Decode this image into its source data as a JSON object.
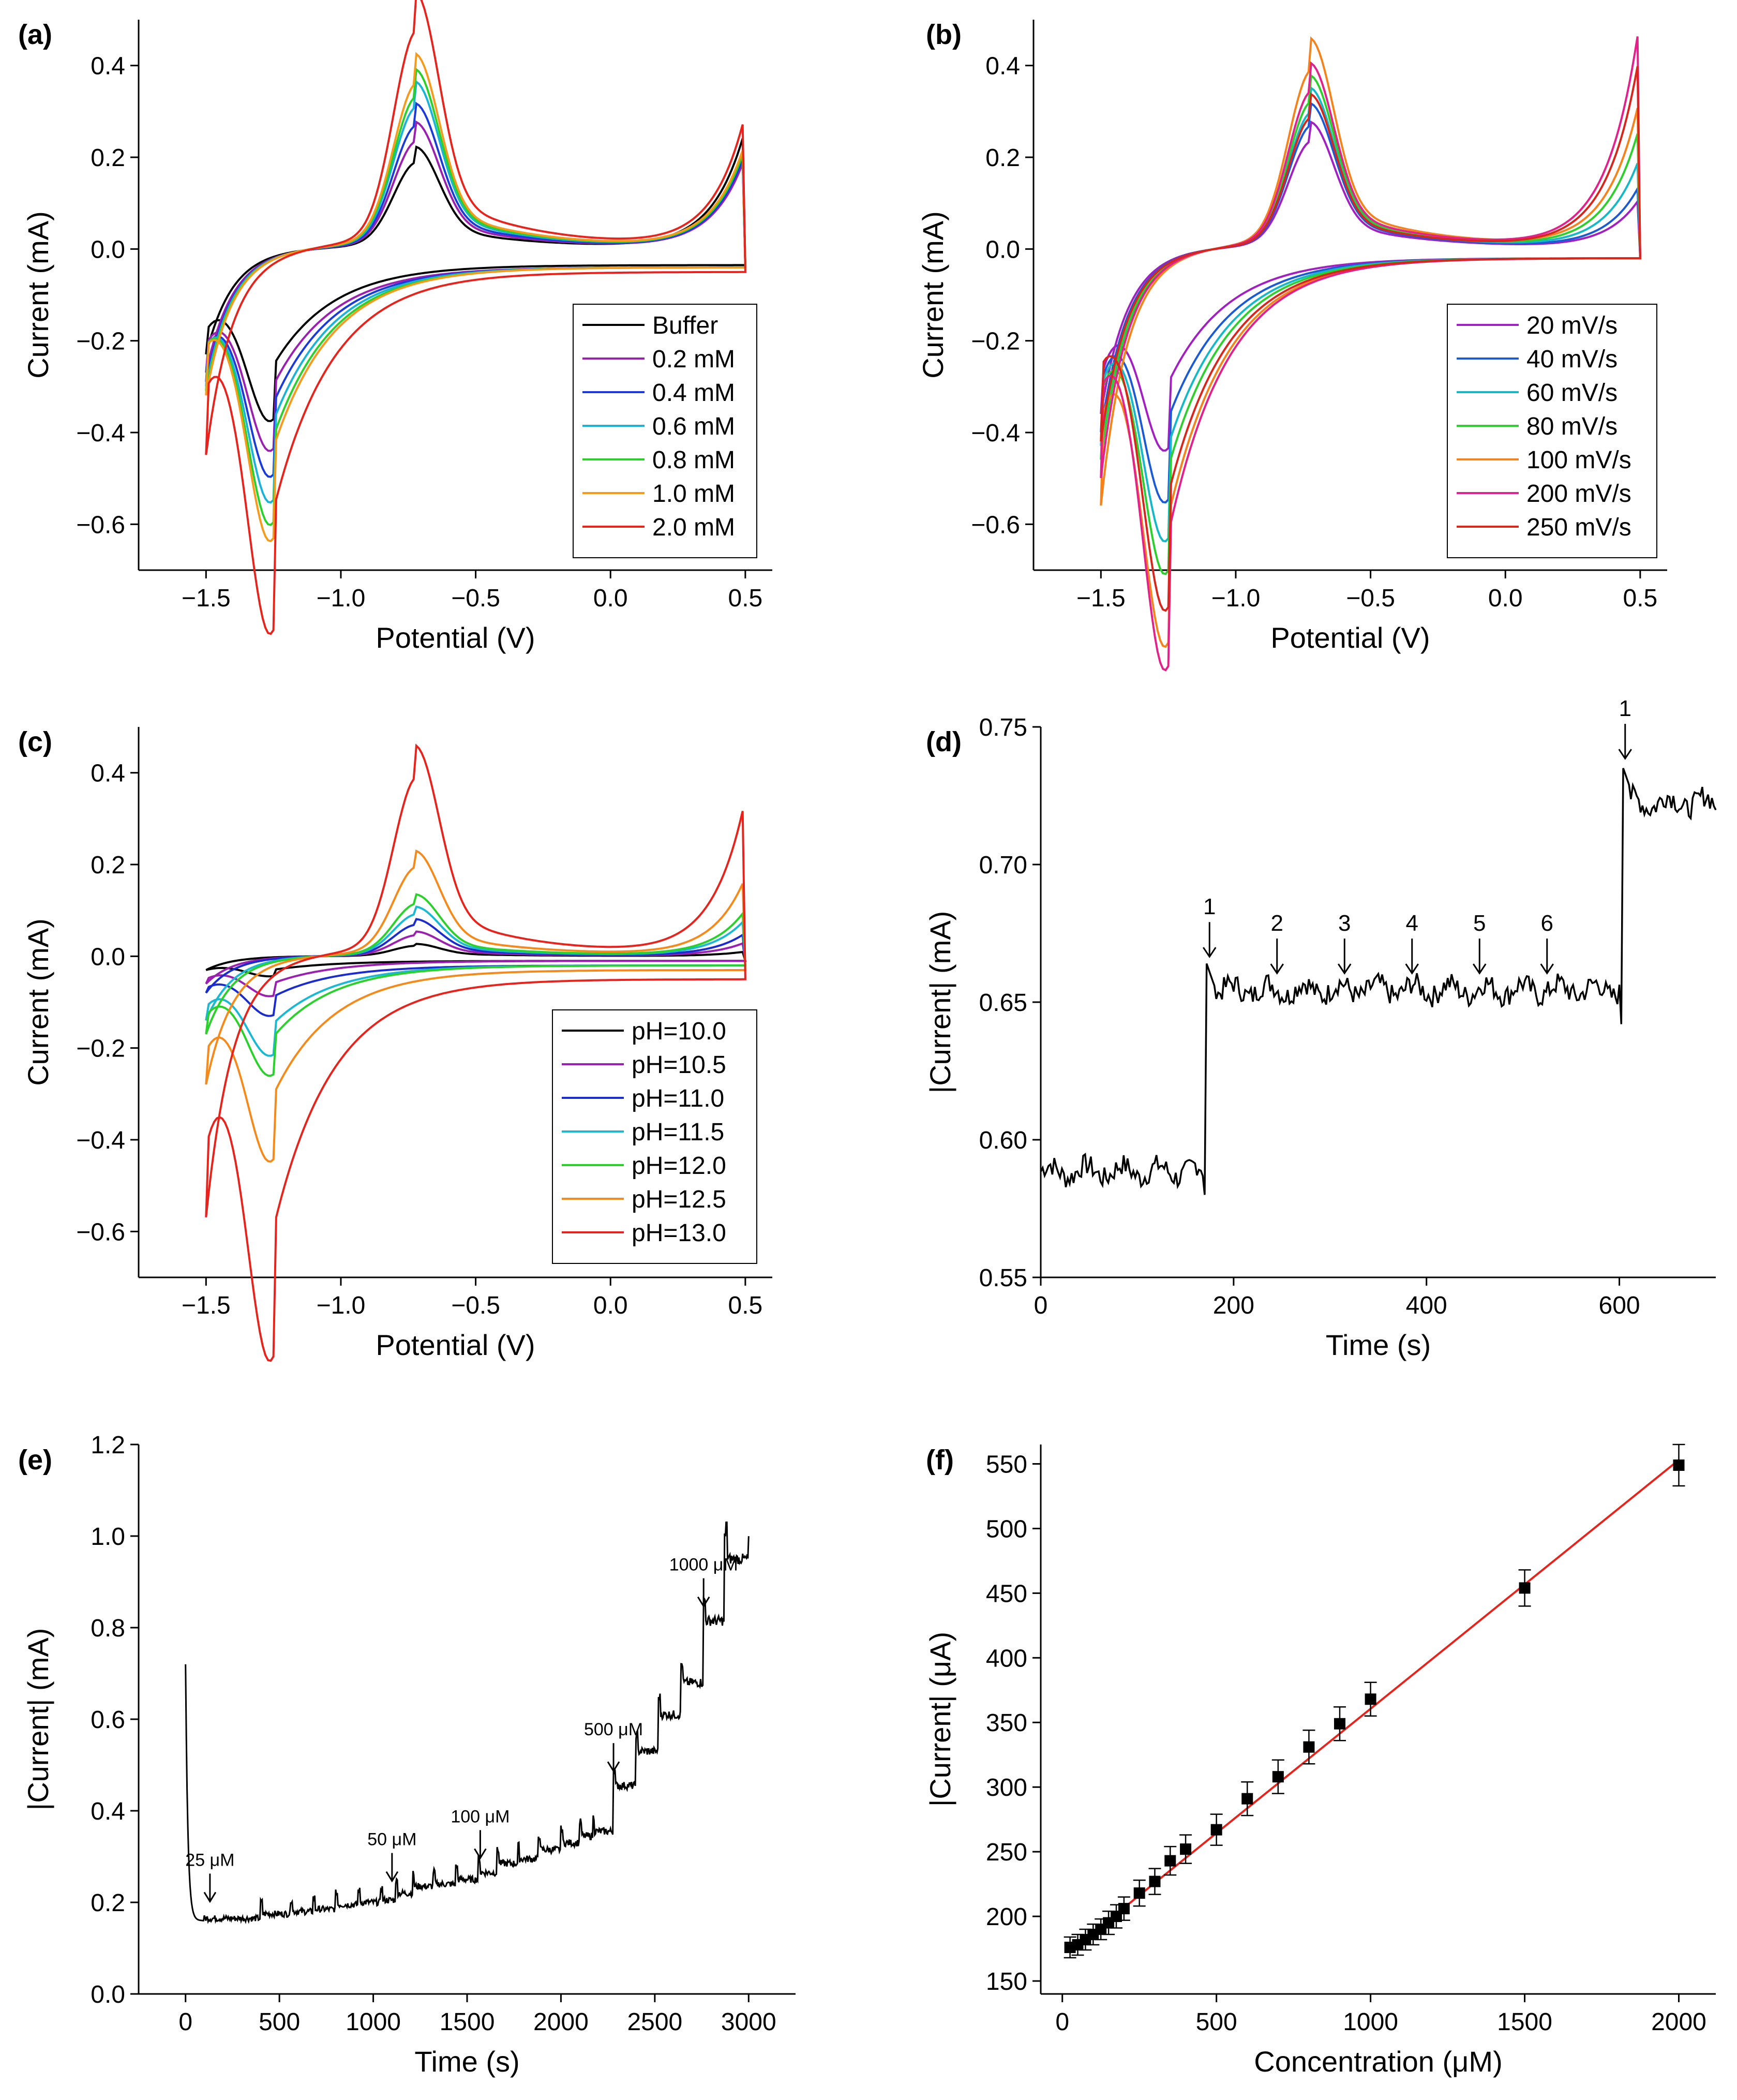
{
  "chart_data": [
    {
      "panel": "(a)",
      "type": "line",
      "xlabel": "Potential (V)",
      "ylabel": "Current (mA)",
      "xlim": [
        -1.75,
        0.6
      ],
      "ylim": [
        -0.7,
        0.5
      ],
      "xticks": [
        -1.5,
        -1.0,
        -0.5,
        0.0,
        0.5
      ],
      "xtick_labels": [
        "−1.5",
        "−1.0",
        "−0.5",
        "0.0",
        "0.5"
      ],
      "yticks": [
        -0.6,
        -0.4,
        -0.2,
        0.0,
        0.2,
        0.4
      ],
      "ytick_labels": [
        "−0.6",
        "−0.4",
        "−0.2",
        "0.0",
        "0.2",
        "0.4"
      ],
      "legend_position": "lower-right",
      "series": [
        {
          "name": "Buffer",
          "color": "#000000",
          "pa": 0.165,
          "pc": -0.26,
          "ev": 0.26,
          "es": -0.23,
          "base": -0.035
        },
        {
          "name": "0.2 mM",
          "color": "#9b1fb0",
          "pa": 0.205,
          "pc": -0.305,
          "ev": 0.2,
          "es": -0.27,
          "base": -0.04
        },
        {
          "name": "0.4 mM",
          "color": "#1a3adb",
          "pa": 0.235,
          "pc": -0.345,
          "ev": 0.21,
          "es": -0.29,
          "base": -0.04
        },
        {
          "name": "0.6 mM",
          "color": "#19b3d8",
          "pa": 0.27,
          "pc": -0.385,
          "ev": 0.22,
          "es": -0.3,
          "base": -0.04
        },
        {
          "name": "0.8 mM",
          "color": "#2ad12a",
          "pa": 0.29,
          "pc": -0.42,
          "ev": 0.22,
          "es": -0.31,
          "base": -0.04
        },
        {
          "name": "1.0 mM",
          "color": "#f59a1b",
          "pa": 0.315,
          "pc": -0.445,
          "ev": 0.23,
          "es": -0.32,
          "base": -0.04
        },
        {
          "name": "2.0 mM",
          "color": "#e8231b",
          "pa": 0.415,
          "pc": -0.585,
          "ev": 0.29,
          "es": -0.45,
          "base": -0.05
        }
      ]
    },
    {
      "panel": "(b)",
      "type": "line",
      "xlabel": "Potential (V)",
      "ylabel": "Current (mA)",
      "xlim": [
        -1.75,
        0.6
      ],
      "ylim": [
        -0.7,
        0.5
      ],
      "xticks": [
        -1.5,
        -1.0,
        -0.5,
        0.0,
        0.5
      ],
      "xtick_labels": [
        "−1.5",
        "−1.0",
        "−0.5",
        "0.0",
        "0.5"
      ],
      "yticks": [
        -0.6,
        -0.4,
        -0.2,
        0.0,
        0.2,
        0.4
      ],
      "ytick_labels": [
        "−0.6",
        "−0.4",
        "−0.2",
        "0.0",
        "0.2",
        "0.4"
      ],
      "legend_position": "lower-right",
      "series": [
        {
          "name": "20 mV/s",
          "color": "#a21fc2",
          "pa": 0.205,
          "pc": -0.3,
          "ev": 0.11,
          "es": -0.36,
          "base": -0.02
        },
        {
          "name": "40 mV/s",
          "color": "#1a5ad6",
          "pa": 0.235,
          "pc": -0.38,
          "ev": 0.14,
          "es": -0.4,
          "base": -0.02
        },
        {
          "name": "60 mV/s",
          "color": "#14b8c6",
          "pa": 0.26,
          "pc": -0.44,
          "ev": 0.2,
          "es": -0.43,
          "base": -0.02
        },
        {
          "name": "80 mV/s",
          "color": "#2ccf2c",
          "pa": 0.28,
          "pc": -0.49,
          "ev": 0.27,
          "es": -0.46,
          "base": -0.02
        },
        {
          "name": "100 mV/s",
          "color": "#f5821b",
          "pa": 0.34,
          "pc": -0.6,
          "ev": 0.33,
          "es": -0.56,
          "base": -0.02
        },
        {
          "name": "200 mV/s",
          "color": "#e2228a",
          "pa": 0.3,
          "pc": -0.64,
          "ev": 0.5,
          "es": -0.5,
          "base": -0.02
        },
        {
          "name": "250 mV/s",
          "color": "#d8261c",
          "pa": 0.25,
          "pc": -0.55,
          "ev": 0.43,
          "es": -0.42,
          "base": -0.02
        }
      ]
    },
    {
      "panel": "(c)",
      "type": "line",
      "xlabel": "Potential (V)",
      "ylabel": "Current (mA)",
      "xlim": [
        -1.75,
        0.6
      ],
      "ylim": [
        -0.7,
        0.5
      ],
      "xticks": [
        -1.5,
        -1.0,
        -0.5,
        0.0,
        0.5
      ],
      "xtick_labels": [
        "−1.5",
        "−1.0",
        "−0.5",
        "0.0",
        "0.5"
      ],
      "yticks": [
        -0.6,
        -0.4,
        -0.2,
        0.0,
        0.2,
        0.4
      ],
      "ytick_labels": [
        "−0.6",
        "−0.4",
        "−0.2",
        "0.0",
        "0.2",
        "0.4"
      ],
      "legend_position": "lower-right",
      "series": [
        {
          "name": "pH=10.0",
          "color": "#000000",
          "pa": 0.02,
          "pc": -0.03,
          "ev": 0.01,
          "es": -0.03,
          "base": -0.01
        },
        {
          "name": "pH=10.5",
          "color": "#9b1fb0",
          "pa": 0.04,
          "pc": -0.06,
          "ev": 0.03,
          "es": -0.06,
          "base": -0.01
        },
        {
          "name": "pH=11.0",
          "color": "#1a2bd0",
          "pa": 0.06,
          "pc": -0.09,
          "ev": 0.05,
          "es": -0.08,
          "base": -0.02
        },
        {
          "name": "pH=11.5",
          "color": "#19b8d3",
          "pa": 0.08,
          "pc": -0.15,
          "ev": 0.08,
          "es": -0.14,
          "base": -0.02
        },
        {
          "name": "pH=12.0",
          "color": "#2ad12a",
          "pa": 0.1,
          "pc": -0.18,
          "ev": 0.1,
          "es": -0.17,
          "base": -0.02
        },
        {
          "name": "pH=12.5",
          "color": "#f58a1b",
          "pa": 0.17,
          "pc": -0.31,
          "ev": 0.17,
          "es": -0.28,
          "base": -0.03
        },
        {
          "name": "pH=13.0",
          "color": "#e8231b",
          "pa": 0.34,
          "pc": -0.61,
          "ev": 0.34,
          "es": -0.57,
          "base": -0.05
        }
      ]
    },
    {
      "panel": "(d)",
      "type": "line",
      "xlabel": "Time (s)",
      "ylabel": "|Current| (mA)",
      "xlim": [
        0,
        700
      ],
      "ylim": [
        0.55,
        0.75
      ],
      "xticks": [
        0,
        200,
        400,
        600
      ],
      "xtick_labels": [
        "0",
        "200",
        "400",
        "600"
      ],
      "yticks": [
        0.55,
        0.6,
        0.65,
        0.7,
        0.75
      ],
      "ytick_labels": [
        "0.55",
        "0.60",
        "0.65",
        "0.70",
        "0.75"
      ],
      "trace": {
        "color": "#000000",
        "segments": [
          {
            "t_start": 0,
            "t_end": 171,
            "level": 0.5885
          },
          {
            "t_start": 171,
            "t_end": 603,
            "level": 0.6545
          },
          {
            "t_start": 603,
            "t_end": 700,
            "level": 0.7225
          }
        ]
      },
      "annotations": [
        {
          "label": "1",
          "x": 175,
          "y": 0.665
        },
        {
          "label": "2",
          "x": 245,
          "y": 0.659
        },
        {
          "label": "3",
          "x": 315,
          "y": 0.659
        },
        {
          "label": "4",
          "x": 385,
          "y": 0.659
        },
        {
          "label": "5",
          "x": 455,
          "y": 0.659
        },
        {
          "label": "6",
          "x": 525,
          "y": 0.659
        },
        {
          "label": "1",
          "x": 606,
          "y": 0.737
        }
      ]
    },
    {
      "panel": "(e)",
      "type": "line",
      "xlabel": "Time (s)",
      "ylabel": "|Current| (mA)",
      "xlim": [
        -250,
        3250
      ],
      "ylim": [
        0.0,
        1.2
      ],
      "xticks": [
        0,
        500,
        1000,
        1500,
        2000,
        2500,
        3000
      ],
      "xtick_labels": [
        "0",
        "500",
        "1000",
        "1500",
        "2000",
        "2500",
        "3000"
      ],
      "yticks": [
        0.0,
        0.2,
        0.4,
        0.6,
        0.8,
        1.0,
        1.2
      ],
      "ytick_labels": [
        "0.0",
        "0.2",
        "0.4",
        "0.6",
        "0.8",
        "1.0",
        "1.2"
      ],
      "trace": {
        "color": "#000000",
        "levels": [
          [
            0,
            0.165
          ],
          [
            400,
            0.175
          ],
          [
            560,
            0.18
          ],
          [
            680,
            0.185
          ],
          [
            800,
            0.195
          ],
          [
            920,
            0.2
          ],
          [
            1040,
            0.205
          ],
          [
            1120,
            0.22
          ],
          [
            1210,
            0.235
          ],
          [
            1320,
            0.24
          ],
          [
            1440,
            0.25
          ],
          [
            1560,
            0.265
          ],
          [
            1660,
            0.285
          ],
          [
            1770,
            0.295
          ],
          [
            1880,
            0.315
          ],
          [
            2000,
            0.33
          ],
          [
            2100,
            0.345
          ],
          [
            2170,
            0.355
          ],
          [
            2280,
            0.455
          ],
          [
            2400,
            0.53
          ],
          [
            2520,
            0.61
          ],
          [
            2640,
            0.68
          ],
          [
            2760,
            0.815
          ],
          [
            2870,
            0.95
          ],
          [
            3000,
            0.95
          ]
        ]
      },
      "annotations": [
        {
          "label": "25 μM",
          "x": 130,
          "y": 0.195
        },
        {
          "label": "50 μM",
          "x": 1100,
          "y": 0.24
        },
        {
          "label": "100 μM",
          "x": 1570,
          "y": 0.29
        },
        {
          "label": "500 μM",
          "x": 2280,
          "y": 0.48
        },
        {
          "label": "1000 μM",
          "x": 2760,
          "y": 0.84
        }
      ]
    },
    {
      "panel": "(f)",
      "type": "scatter",
      "xlabel": "Concentration (μM)",
      "ylabel": "|Current| (μA)",
      "xlim": [
        -70,
        2120
      ],
      "ylim": [
        140,
        565
      ],
      "xticks": [
        0,
        500,
        1000,
        1500,
        2000
      ],
      "xtick_labels": [
        "0",
        "500",
        "1000",
        "1500",
        "2000"
      ],
      "yticks": [
        150,
        200,
        250,
        300,
        350,
        400,
        450,
        500,
        550
      ],
      "ytick_labels": [
        "150",
        "200",
        "250",
        "300",
        "350",
        "400",
        "450",
        "500",
        "550"
      ],
      "fit_line": {
        "color": "#e8231b",
        "x": [
          25,
          2000
        ],
        "y": [
          173,
          553
        ]
      },
      "x": [
        25,
        50,
        75,
        100,
        125,
        150,
        175,
        200,
        250,
        300,
        350,
        400,
        500,
        600,
        700,
        800,
        900,
        1000,
        1500,
        2000
      ],
      "y": [
        176,
        178,
        182,
        186,
        190,
        195,
        200,
        206,
        218,
        227,
        243,
        252,
        267,
        291,
        308,
        331,
        349,
        368,
        454,
        549
      ],
      "yerr": [
        8,
        8,
        8,
        8,
        8,
        9,
        9,
        9,
        10,
        10,
        11,
        11,
        12,
        13,
        13,
        13,
        13,
        13,
        14,
        16
      ]
    }
  ]
}
